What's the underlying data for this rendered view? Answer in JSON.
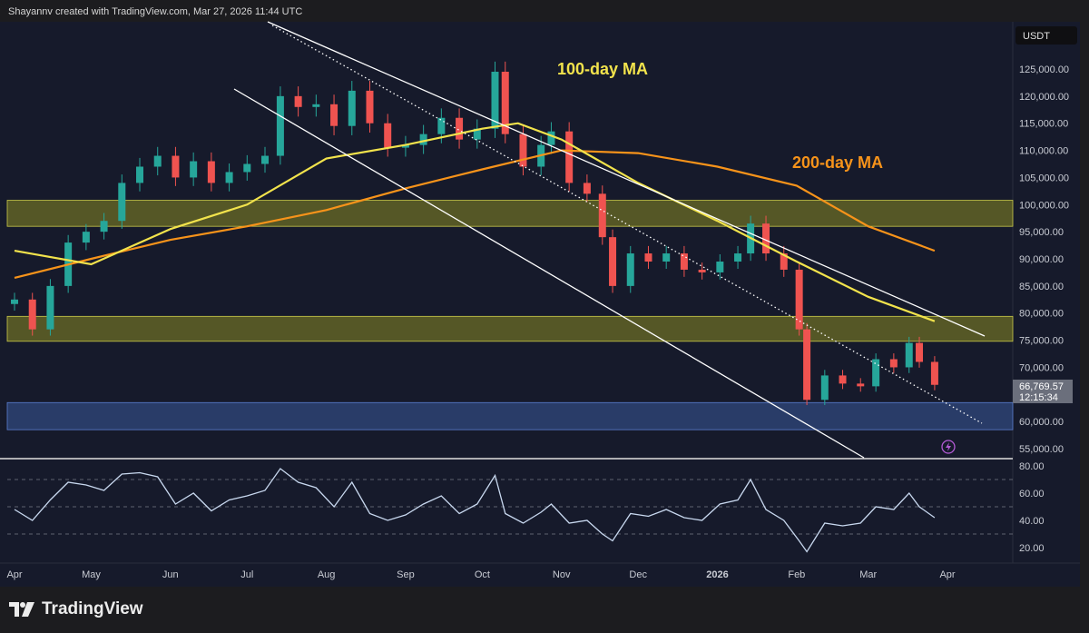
{
  "header": {
    "credit": "Shayannv created with TradingView.com, Mar 27, 2026 11:44 UTC"
  },
  "footer": {
    "logo_text": "TradingView"
  },
  "price_axis": {
    "currency": "USDT",
    "last_price": "66,769.57",
    "countdown": "12:15:34"
  },
  "colors": {
    "background": "#161a2b",
    "up": "#26a69a",
    "down": "#ef5350",
    "ma100": "#f2e34c",
    "ma200": "#f7931a",
    "zone": "#8a8a22",
    "support_zone": "#3a5a9a",
    "rsi": "#c8d8ef",
    "channel": "#ffffff"
  },
  "icons": {
    "alert": "lightning-icon"
  },
  "chart_data": [
    {
      "type": "candlestick",
      "title": "",
      "annotations": {
        "ma100_label": "100-day MA",
        "ma200_label": "200-day MA"
      },
      "yticks": [
        "125,000.00",
        "120,000.00",
        "115,000.00",
        "110,000.00",
        "105,000.00",
        "100,000.00",
        "95,000.00",
        "90,000.00",
        "85,000.00",
        "80,000.00",
        "75,000.00",
        "70,000.00",
        "60,000.00",
        "55,000.00"
      ],
      "ytick_values": [
        125000,
        120000,
        115000,
        110000,
        105000,
        100000,
        95000,
        90000,
        85000,
        80000,
        75000,
        70000,
        60000,
        55000
      ],
      "ylim": [
        55000,
        127000
      ],
      "xticks": [
        "Apr",
        "May",
        "Jun",
        "Jul",
        "Aug",
        "Sep",
        "Oct",
        "Nov",
        "Dec",
        "2026",
        "Feb",
        "Mar",
        "Apr"
      ],
      "xtick_dates": [
        "2025-04-01",
        "2025-05-01",
        "2025-06-01",
        "2025-07-01",
        "2025-08-01",
        "2025-09-01",
        "2025-10-01",
        "2025-11-01",
        "2025-12-01",
        "2026-01-01",
        "2026-02-01",
        "2026-03-01",
        "2026-04-01"
      ],
      "closes": [
        [
          "2025-04-01",
          82500
        ],
        [
          "2025-04-08",
          77000
        ],
        [
          "2025-04-15",
          85000
        ],
        [
          "2025-04-22",
          93000
        ],
        [
          "2025-04-29",
          95000
        ],
        [
          "2025-05-06",
          97000
        ],
        [
          "2025-05-13",
          104000
        ],
        [
          "2025-05-20",
          107000
        ],
        [
          "2025-05-27",
          109000
        ],
        [
          "2025-06-03",
          105000
        ],
        [
          "2025-06-10",
          108000
        ],
        [
          "2025-06-17",
          104000
        ],
        [
          "2025-06-24",
          106000
        ],
        [
          "2025-07-01",
          107500
        ],
        [
          "2025-07-08",
          109000
        ],
        [
          "2025-07-14",
          120000
        ],
        [
          "2025-07-21",
          118000
        ],
        [
          "2025-07-28",
          118500
        ],
        [
          "2025-08-04",
          114500
        ],
        [
          "2025-08-11",
          121000
        ],
        [
          "2025-08-18",
          115000
        ],
        [
          "2025-08-25",
          110500
        ],
        [
          "2025-09-01",
          111000
        ],
        [
          "2025-09-08",
          113000
        ],
        [
          "2025-09-15",
          116000
        ],
        [
          "2025-09-22",
          112000
        ],
        [
          "2025-09-29",
          114000
        ],
        [
          "2025-10-06",
          124500
        ],
        [
          "2025-10-10",
          113000
        ],
        [
          "2025-10-17",
          107000
        ],
        [
          "2025-10-24",
          111000
        ],
        [
          "2025-10-28",
          113500
        ],
        [
          "2025-11-04",
          104000
        ],
        [
          "2025-11-11",
          102000
        ],
        [
          "2025-11-17",
          94000
        ],
        [
          "2025-11-21",
          85000
        ],
        [
          "2025-11-28",
          91000
        ],
        [
          "2025-12-05",
          89500
        ],
        [
          "2025-12-12",
          91000
        ],
        [
          "2025-12-19",
          88000
        ],
        [
          "2025-12-26",
          87500
        ],
        [
          "2026-01-02",
          89500
        ],
        [
          "2026-01-09",
          91000
        ],
        [
          "2026-01-14",
          96500
        ],
        [
          "2026-01-20",
          91000
        ],
        [
          "2026-01-27",
          88000
        ],
        [
          "2026-02-02",
          77000
        ],
        [
          "2026-02-05",
          64000
        ],
        [
          "2026-02-12",
          68500
        ],
        [
          "2026-02-19",
          67000
        ],
        [
          "2026-02-26",
          66500
        ],
        [
          "2026-03-04",
          71500
        ],
        [
          "2026-03-11",
          70000
        ],
        [
          "2026-03-17",
          74500
        ],
        [
          "2026-03-21",
          71000
        ],
        [
          "2026-03-27",
          66769.57
        ]
      ],
      "ma100": [
        [
          "2025-04-01",
          91500
        ],
        [
          "2025-05-01",
          89000
        ],
        [
          "2025-06-01",
          95500
        ],
        [
          "2025-07-01",
          100000
        ],
        [
          "2025-08-01",
          108500
        ],
        [
          "2025-09-01",
          111000
        ],
        [
          "2025-10-01",
          114000
        ],
        [
          "2025-10-15",
          115000
        ],
        [
          "2025-11-01",
          112000
        ],
        [
          "2025-12-01",
          104000
        ],
        [
          "2026-01-01",
          97000
        ],
        [
          "2026-02-01",
          89500
        ],
        [
          "2026-03-01",
          83000
        ],
        [
          "2026-03-27",
          78500
        ]
      ],
      "ma200": [
        [
          "2025-04-01",
          86500
        ],
        [
          "2025-05-01",
          90000
        ],
        [
          "2025-06-01",
          93500
        ],
        [
          "2025-07-01",
          96000
        ],
        [
          "2025-08-01",
          99000
        ],
        [
          "2025-09-01",
          103000
        ],
        [
          "2025-10-01",
          106500
        ],
        [
          "2025-11-01",
          110000
        ],
        [
          "2025-12-01",
          109500
        ],
        [
          "2026-01-01",
          107000
        ],
        [
          "2026-02-01",
          103500
        ],
        [
          "2026-03-01",
          96000
        ],
        [
          "2026-03-27",
          91500
        ]
      ],
      "zones": [
        [
          96000,
          100800
        ],
        [
          74800,
          79400
        ]
      ],
      "support_zone": [
        58500,
        63500
      ]
    },
    {
      "type": "line",
      "title": "",
      "yticks": [
        "80.00",
        "60.00",
        "40.00",
        "20.00"
      ],
      "ytick_values": [
        80,
        60,
        40,
        20
      ],
      "levels": [
        70,
        50,
        30
      ],
      "ylim": [
        10,
        85
      ],
      "values": [
        [
          "2025-04-01",
          48
        ],
        [
          "2025-04-08",
          40
        ],
        [
          "2025-04-15",
          55
        ],
        [
          "2025-04-22",
          68
        ],
        [
          "2025-04-29",
          66
        ],
        [
          "2025-05-06",
          62
        ],
        [
          "2025-05-13",
          74
        ],
        [
          "2025-05-20",
          75
        ],
        [
          "2025-05-27",
          72
        ],
        [
          "2025-06-03",
          52
        ],
        [
          "2025-06-10",
          60
        ],
        [
          "2025-06-17",
          47
        ],
        [
          "2025-06-24",
          55
        ],
        [
          "2025-07-01",
          58
        ],
        [
          "2025-07-08",
          62
        ],
        [
          "2025-07-14",
          78
        ],
        [
          "2025-07-21",
          68
        ],
        [
          "2025-07-28",
          64
        ],
        [
          "2025-08-04",
          50
        ],
        [
          "2025-08-11",
          68
        ],
        [
          "2025-08-18",
          45
        ],
        [
          "2025-08-25",
          40
        ],
        [
          "2025-09-01",
          44
        ],
        [
          "2025-09-08",
          52
        ],
        [
          "2025-09-15",
          58
        ],
        [
          "2025-09-22",
          45
        ],
        [
          "2025-09-29",
          52
        ],
        [
          "2025-10-06",
          73
        ],
        [
          "2025-10-10",
          45
        ],
        [
          "2025-10-17",
          38
        ],
        [
          "2025-10-24",
          46
        ],
        [
          "2025-10-28",
          52
        ],
        [
          "2025-11-04",
          38
        ],
        [
          "2025-11-11",
          40
        ],
        [
          "2025-11-17",
          30
        ],
        [
          "2025-11-21",
          25
        ],
        [
          "2025-11-28",
          45
        ],
        [
          "2025-12-05",
          43
        ],
        [
          "2025-12-12",
          48
        ],
        [
          "2025-12-19",
          42
        ],
        [
          "2025-12-26",
          40
        ],
        [
          "2026-01-02",
          52
        ],
        [
          "2026-01-09",
          55
        ],
        [
          "2026-01-14",
          70
        ],
        [
          "2026-01-20",
          48
        ],
        [
          "2026-01-27",
          40
        ],
        [
          "2026-02-02",
          25
        ],
        [
          "2026-02-05",
          17
        ],
        [
          "2026-02-12",
          38
        ],
        [
          "2026-02-19",
          36
        ],
        [
          "2026-02-26",
          38
        ],
        [
          "2026-03-04",
          50
        ],
        [
          "2026-03-11",
          48
        ],
        [
          "2026-03-17",
          60
        ],
        [
          "2026-03-21",
          50
        ],
        [
          "2026-03-27",
          42
        ]
      ]
    }
  ]
}
